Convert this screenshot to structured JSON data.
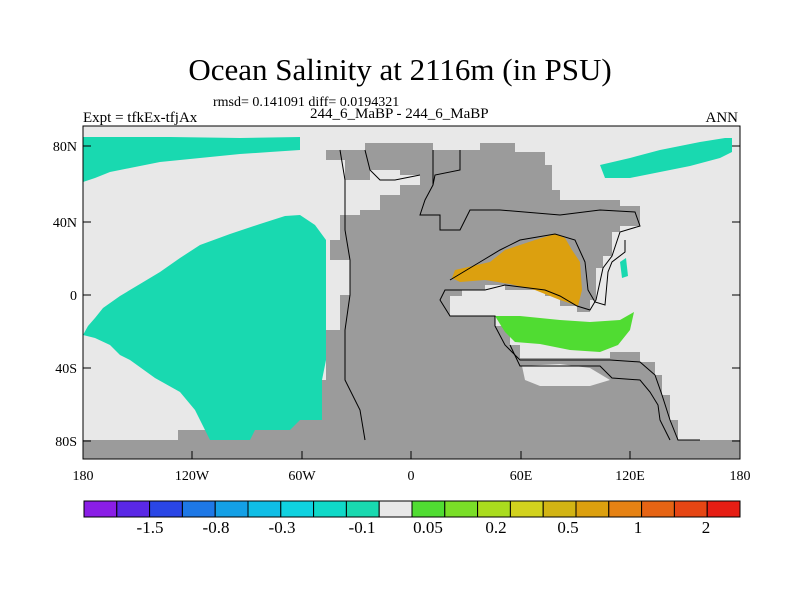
{
  "title": "Ocean Salinity at 2116m (in PSU)",
  "stats": "rmsd= 0.141091 diff= 0.0194321",
  "left_label": "Expt = tfkEx-tfjAx",
  "center_label": "244_6_MaBP - 244_6_MaBP",
  "right_label": "ANN",
  "lat_ticks": [
    "80N",
    "40N",
    "0",
    "40S",
    "80S"
  ],
  "lon_ticks": [
    "180",
    "120W",
    "60W",
    "0",
    "60E",
    "120E",
    "180"
  ],
  "colorbar": {
    "colors": [
      "#8a1ee6",
      "#5a28e6",
      "#2a46e6",
      "#1e78e6",
      "#14a0e6",
      "#10bee6",
      "#10d2e0",
      "#10d9c8",
      "#19d9b0",
      "#e8e8e8",
      "#50dc32",
      "#7ade28",
      "#aadc1e",
      "#d2d21e",
      "#d2b414",
      "#dca00f",
      "#e68214",
      "#e66414",
      "#e64614",
      "#e61e14"
    ],
    "labels": [
      "-1.5",
      "-0.8",
      "-0.3",
      "-0.1",
      "0.05",
      "0.2",
      "0.5",
      "1",
      "2"
    ]
  },
  "colors": {
    "land": "#9b9b9b",
    "near_zero": "#e8e8e8",
    "negative_small": "#19d9b0",
    "positive_green": "#50dc32",
    "positive_orange": "#dca00f"
  }
}
